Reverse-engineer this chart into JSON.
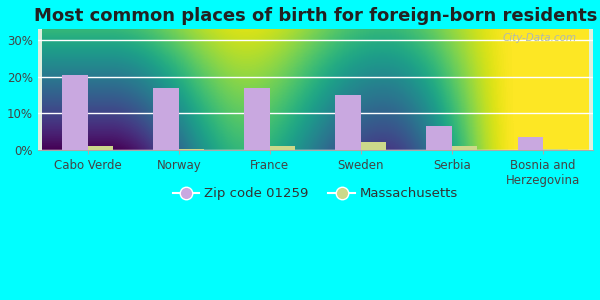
{
  "title": "Most common places of birth for foreign-born residents",
  "categories": [
    "Cabo Verde",
    "Norway",
    "France",
    "Sweden",
    "Serbia",
    "Bosnia and\nHerzegovina"
  ],
  "zip_values": [
    20.5,
    17.0,
    17.0,
    15.0,
    6.5,
    3.5
  ],
  "ma_values": [
    1.0,
    0.15,
    1.0,
    2.2,
    1.0,
    0.15
  ],
  "zip_color": "#c9a8e0",
  "ma_color": "#ccd98a",
  "zip_label": "Zip code 01259",
  "ma_label": "Massachusetts",
  "yticks": [
    0,
    10,
    20,
    30
  ],
  "ytick_labels": [
    "0%",
    "10%",
    "20%",
    "30%"
  ],
  "ylim": [
    0,
    33
  ],
  "outer_bg": "#00ffff",
  "plot_bg": "#e8f5e9",
  "watermark": "City-Data.com",
  "title_fontsize": 13,
  "tick_fontsize": 8.5,
  "legend_fontsize": 9.5,
  "bar_width": 0.28
}
